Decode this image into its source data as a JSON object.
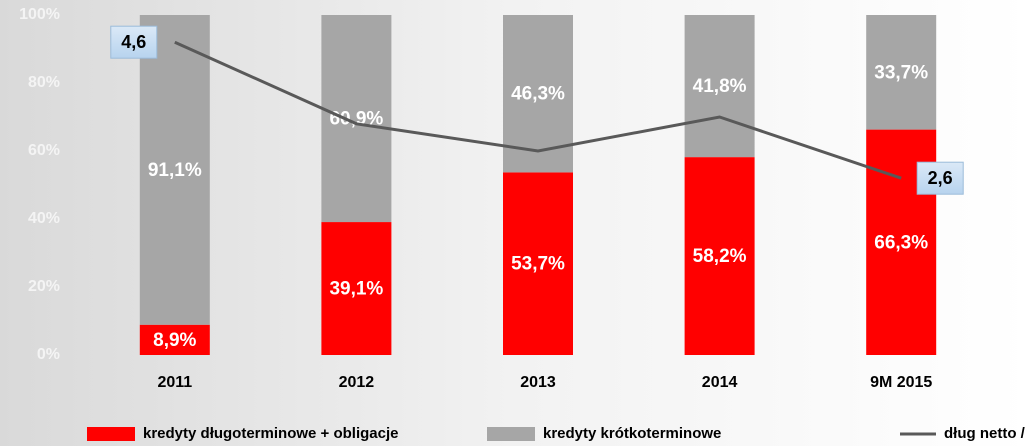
{
  "chart_data": {
    "type": "stacked-bar-line",
    "categories": [
      "2011",
      "2012",
      "2013",
      "2014",
      "9M 2015"
    ],
    "series": [
      {
        "name": "kredyty długoterminowe + obligacje",
        "color": "#ff0000",
        "values": [
          8.9,
          39.1,
          53.7,
          58.2,
          66.3
        ],
        "value_labels": [
          "8,9%",
          "39,1%",
          "53,7%",
          "58,2%",
          "66,3%"
        ]
      },
      {
        "name": "kredyty krótkoterminowe",
        "color": "#a6a6a6",
        "values": [
          91.1,
          60.9,
          46.3,
          41.8,
          33.7
        ],
        "value_labels": [
          "91,1%",
          "60,9%",
          "46,3%",
          "41,8%",
          "33,7%"
        ]
      },
      {
        "name": "dług netto / EBITDA",
        "color": "#595959",
        "axis": "y2",
        "values": [
          4.6,
          3.4,
          3.0,
          3.5,
          2.6
        ],
        "value_labels": [
          "4,6",
          null,
          null,
          null,
          "2,6"
        ]
      }
    ],
    "ylim": [
      0,
      100
    ],
    "yticks": [
      {
        "value": 0,
        "label": "0%"
      },
      {
        "value": 20,
        "label": "20%"
      },
      {
        "value": 40,
        "label": "40%"
      },
      {
        "value": 60,
        "label": "60%"
      },
      {
        "value": 80,
        "label": "80%"
      },
      {
        "value": 100,
        "label": "100%"
      }
    ],
    "y2lim": [
      0,
      5
    ]
  }
}
